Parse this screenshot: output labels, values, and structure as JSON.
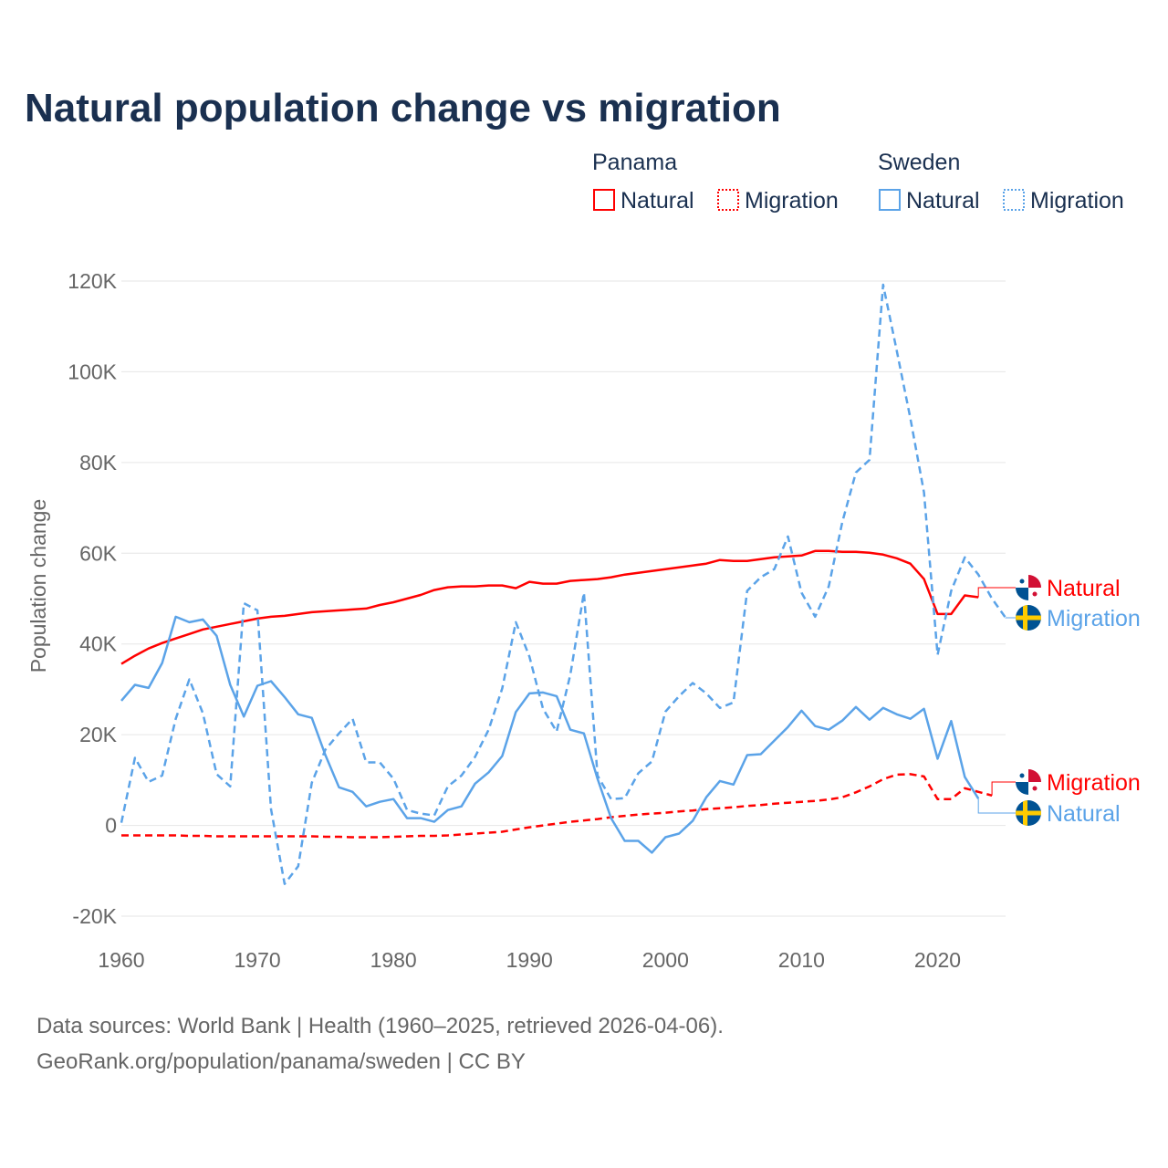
{
  "chart_data": {
    "type": "line",
    "title": "Natural population change vs migration",
    "ylabel": "Population change",
    "xlabel": "",
    "xlim": [
      1960,
      2025
    ],
    "ylim": [
      -20000,
      120000
    ],
    "x_ticks": [
      "1960",
      "1970",
      "1980",
      "1990",
      "2000",
      "2010",
      "2020"
    ],
    "x_tick_values": [
      1960,
      1970,
      1980,
      1990,
      2000,
      2010,
      2020
    ],
    "y_ticks": [
      "-20K",
      "0",
      "20K",
      "40K",
      "60K",
      "80K",
      "100K",
      "120K"
    ],
    "y_tick_values": [
      -20000,
      0,
      20000,
      40000,
      60000,
      80000,
      100000,
      120000
    ],
    "grid": true,
    "legend": {
      "placement": "top-right",
      "groups": [
        {
          "title": "Panama",
          "items": [
            "Natural",
            "Migration"
          ]
        },
        {
          "title": "Sweden",
          "items": [
            "Natural",
            "Migration"
          ]
        }
      ]
    },
    "series": [
      {
        "name": "Panama Natural",
        "country": "Panama",
        "kind": "Natural",
        "color": "#ff0000",
        "dash": false,
        "start": 1960,
        "values_k": [
          35.6,
          37.4,
          39,
          40.2,
          41.2,
          42.2,
          43.2,
          43.8,
          44.4,
          45,
          45.6,
          46,
          46.2,
          46.6,
          47,
          47.2,
          47.4,
          47.6,
          47.8,
          48.6,
          49.2,
          50,
          50.8,
          51.9,
          52.5,
          52.7,
          52.7,
          52.9,
          52.9,
          52.3,
          53.7,
          53.3,
          53.3,
          53.9,
          54.1,
          54.3,
          54.7,
          55.3,
          55.7,
          56.1,
          56.5,
          56.9,
          57.3,
          57.7,
          58.5,
          58.3,
          58.3,
          58.7,
          59.1,
          59.3,
          59.5,
          60.5,
          60.5,
          60.3,
          60.3,
          60.1,
          59.7,
          58.9,
          57.7,
          54.3,
          46.6,
          46.6,
          50.7,
          50.3
        ],
        "end_label": "Natural"
      },
      {
        "name": "Panama Migration",
        "country": "Panama",
        "kind": "Migration",
        "color": "#ff0000",
        "dash": true,
        "start": 1960,
        "values_k": [
          -2.2,
          -2.2,
          -2.2,
          -2.2,
          -2.2,
          -2.3,
          -2.3,
          -2.4,
          -2.4,
          -2.4,
          -2.4,
          -2.4,
          -2.4,
          -2.4,
          -2.4,
          -2.5,
          -2.5,
          -2.6,
          -2.6,
          -2.6,
          -2.5,
          -2.4,
          -2.3,
          -2.3,
          -2.2,
          -2,
          -1.8,
          -1.6,
          -1.4,
          -0.9,
          -0.4,
          0,
          0.4,
          0.8,
          1.1,
          1.4,
          1.8,
          2.1,
          2.4,
          2.6,
          2.8,
          3.1,
          3.3,
          3.6,
          3.8,
          4,
          4.3,
          4.5,
          4.8,
          5,
          5.2,
          5.4,
          5.7,
          6.2,
          7.3,
          8.6,
          10.2,
          11.2,
          11.3,
          10.8,
          5.8,
          5.8,
          8.2,
          7.4,
          6.6
        ],
        "end_label": "Migration"
      },
      {
        "name": "Sweden Natural",
        "country": "Sweden",
        "kind": "Natural",
        "color": "#5ba3e8",
        "dash": false,
        "start": 1960,
        "values_k": [
          27.5,
          31,
          30.3,
          35.8,
          46,
          44.8,
          45.4,
          41.8,
          31,
          24,
          30.8,
          31.8,
          28.3,
          24.5,
          23.7,
          15.5,
          8.4,
          7.4,
          4.2,
          5.2,
          5.8,
          1.6,
          1.6,
          0.8,
          3.4,
          4.2,
          9.2,
          11.7,
          15.3,
          25,
          29.1,
          29.3,
          28.5,
          21.1,
          20.3,
          10.3,
          1.6,
          -3.4,
          -3.4,
          -6,
          -2.6,
          -1.8,
          1,
          6.2,
          9.8,
          9,
          15.5,
          15.7,
          18.7,
          21.7,
          25.3,
          21.9,
          21.1,
          23.1,
          26.1,
          23.3,
          25.9,
          24.5,
          23.5,
          25.7,
          14.7,
          23,
          10.7,
          5.9
        ],
        "end_label": "Natural"
      },
      {
        "name": "Sweden Migration",
        "country": "Sweden",
        "kind": "Migration",
        "color": "#5ba3e8",
        "dash": true,
        "start": 1960,
        "values_k": [
          0.6,
          14.9,
          9.6,
          11,
          23.5,
          32.2,
          24.7,
          11.3,
          8.6,
          49,
          47.4,
          3.6,
          -12.9,
          -9,
          9.4,
          16.7,
          20.3,
          23.5,
          13.9,
          13.9,
          10.3,
          3.4,
          2.6,
          2.2,
          8.6,
          11,
          15.1,
          21.1,
          30.2,
          44.8,
          37.2,
          25.7,
          20.7,
          33.2,
          51.3,
          11,
          5.8,
          6,
          11.5,
          14.1,
          25.1,
          28.5,
          31.4,
          29.1,
          25.9,
          27.1,
          51.7,
          54.7,
          56.5,
          63.7,
          51.3,
          46,
          52.7,
          66.9,
          77.8,
          80.6,
          119.2,
          104.7,
          89.8,
          73.4,
          37.6,
          51.7,
          59.1,
          55.3,
          50,
          45.8
        ],
        "end_label": "Migration"
      }
    ]
  },
  "colors": {
    "panama": "#ff0000",
    "sweden": "#5ba3e8",
    "title": "#1a3050",
    "text": "#666666"
  },
  "footer": {
    "line1": "Data sources: World Bank | Health (1960–2025, retrieved 2026-04-06).",
    "line2": "GeoRank.org/population/panama/sweden | CC BY"
  }
}
